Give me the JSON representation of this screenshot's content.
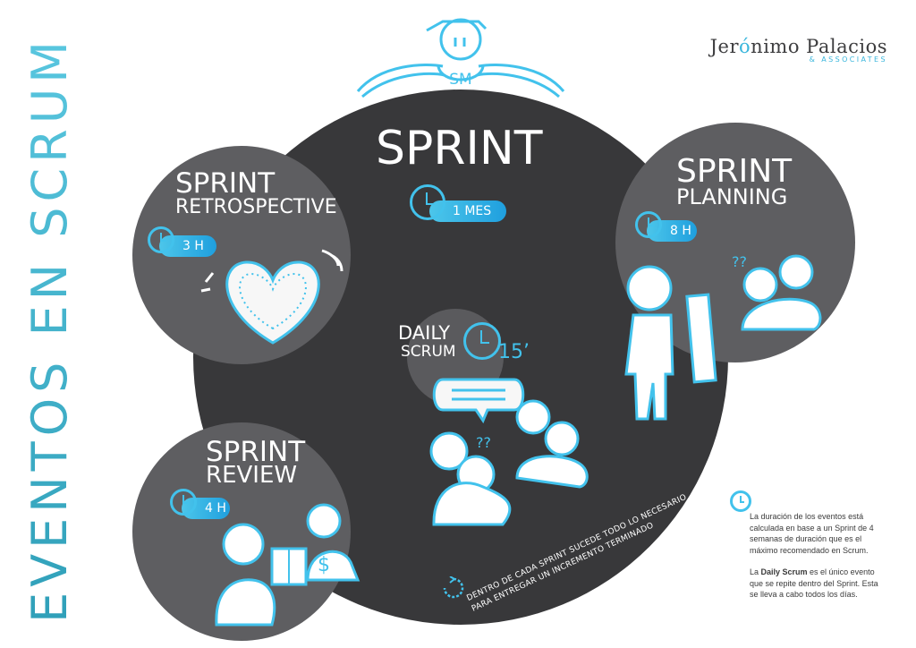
{
  "side_title": "EVENTOS EN SCRUM",
  "logo": {
    "name_part1": "Jer",
    "name_accent": "ó",
    "name_part2": "nimo Palacios",
    "sub": "& ASSOCIATES"
  },
  "sm_label": "SM",
  "sprint": {
    "title": "SPRINT",
    "duration": "1 MES"
  },
  "retrospective": {
    "line1": "SPRINT",
    "line2": "RETROSPECTIVE",
    "duration": "3 H"
  },
  "planning": {
    "line1": "SPRINT",
    "line2": "PLANNING",
    "duration": "8 H"
  },
  "review": {
    "line1": "SPRINT",
    "line2": "REVIEW",
    "duration": "4 H"
  },
  "daily": {
    "line1": "DAILY",
    "line2": "SCRUM",
    "duration": "15’"
  },
  "questions": "??",
  "dollar": "$",
  "bottom_text": {
    "line1": "DENTRO DE CADA SPRINT SUCEDE TODO LO NECESARIO",
    "line2": "PARA ENTREGAR UN INCREMENTO TERMINADO"
  },
  "note": {
    "p1": "La duración de los eventos está calculada en base a un Sprint de 4 semanas de duración que es el máximo recomendado en Scrum.",
    "p2_pre": "La ",
    "p2_bold": "Daily Scrum",
    "p2_post": " es el único evento que se repite dentro del Sprint. Esta se lleva a cabo todos los días."
  },
  "colors": {
    "accent": "#3ab6dc",
    "dark": "#38383a",
    "gray": "#5e5e61"
  }
}
